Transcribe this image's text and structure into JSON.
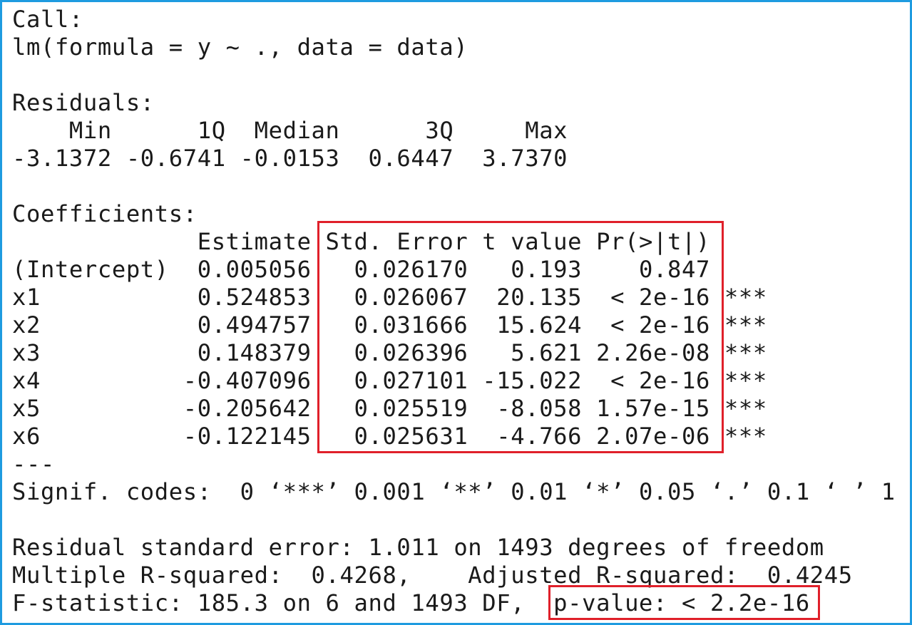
{
  "console_lines": [
    "Call:",
    "lm(formula = y ~ ., data = data)",
    "",
    "Residuals:",
    "    Min      1Q  Median      3Q     Max ",
    "-3.1372 -0.6741 -0.0153  0.6447  3.7370 ",
    "",
    "Coefficients:",
    "             Estimate Std. Error t value Pr(>|t|)    ",
    "(Intercept)  0.005056   0.026170   0.193    0.847    ",
    "x1           0.524853   0.026067  20.135  < 2e-16 ***",
    "x2           0.494757   0.031666  15.624  < 2e-16 ***",
    "x3           0.148379   0.026396   5.621 2.26e-08 ***",
    "x4          -0.407096   0.027101 -15.022  < 2e-16 ***",
    "x5          -0.205642   0.025519  -8.058 1.57e-15 ***",
    "x6          -0.122145   0.025631  -4.766 2.07e-06 ***",
    "---",
    "Signif. codes:  0 ‘***’ 0.001 ‘**’ 0.01 ‘*’ 0.05 ‘.’ 0.1 ‘ ’ 1",
    "",
    "Residual standard error: 1.011 on 1493 degrees of freedom",
    "Multiple R-squared:  0.4268,    Adjusted R-squared:  0.4245 ",
    "F-statistic: 185.3 on 6 and 1493 DF,  p-value: < 2.2e-16"
  ],
  "colors": {
    "frame_border": "#1e9be0",
    "highlight_box": "#e0202a",
    "text": "#1a1a1a",
    "background": "#ffffff"
  }
}
